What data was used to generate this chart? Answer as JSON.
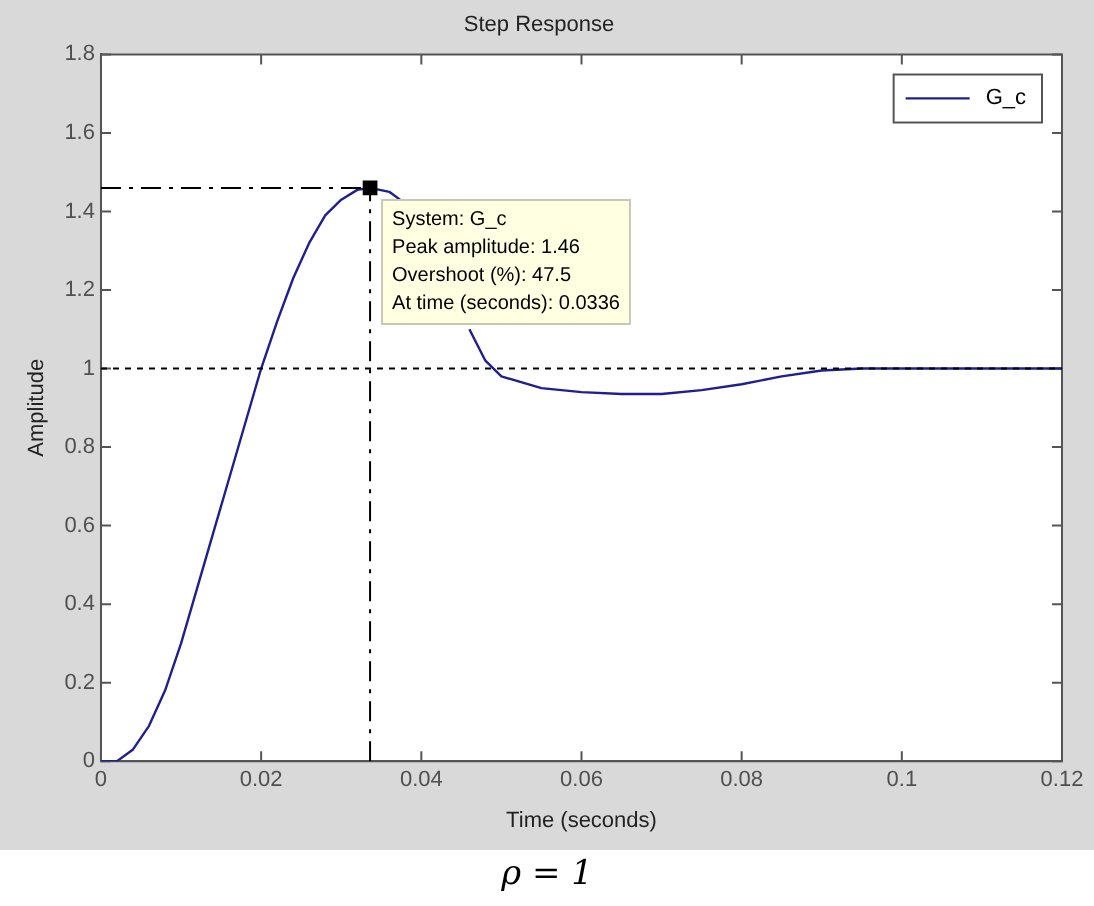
{
  "chart_data": {
    "type": "line",
    "title": "Step Response",
    "xlabel": "Time (seconds)",
    "ylabel": "Amplitude",
    "xlim": [
      0,
      0.12
    ],
    "xticks": [
      0,
      0.02,
      0.04,
      0.06,
      0.08,
      0.1,
      0.12
    ],
    "ylim": [
      0,
      1.8
    ],
    "yticks": [
      0,
      0.2,
      0.4,
      0.6,
      0.8,
      1,
      1.2,
      1.4,
      1.6,
      1.8
    ],
    "legend": "top right",
    "series": [
      {
        "name": "G_c",
        "color": "#1f1f8f",
        "marker": "none",
        "x": [
          0,
          0.002,
          0.004,
          0.006,
          0.008,
          0.01,
          0.012,
          0.014,
          0.016,
          0.018,
          0.02,
          0.022,
          0.024,
          0.026,
          0.028,
          0.03,
          0.032,
          0.0336,
          0.036,
          0.038,
          0.04,
          0.042,
          0.044,
          0.046,
          0.048,
          0.05,
          0.055,
          0.06,
          0.065,
          0.07,
          0.075,
          0.08,
          0.085,
          0.09,
          0.095,
          0.1,
          0.11,
          0.12
        ],
        "values": [
          0,
          0,
          0.03,
          0.09,
          0.18,
          0.3,
          0.44,
          0.58,
          0.72,
          0.86,
          1,
          1.12,
          1.23,
          1.32,
          1.39,
          1.43,
          1.455,
          1.46,
          1.45,
          1.42,
          null,
          null,
          null,
          1.1,
          1.02,
          0.98,
          0.95,
          0.94,
          0.935,
          0.935,
          0.945,
          0.96,
          0.98,
          0.995,
          1,
          1,
          1,
          1
        ]
      },
      {
        "type": "scatter",
        "color": "#000000",
        "marker": "square",
        "x": [
          0.0336
        ],
        "values": [
          1.46
        ]
      }
    ],
    "ref_lines": [
      {
        "axis": "y",
        "value": 1,
        "color": "#000000",
        "line_style": "dotted"
      },
      {
        "axis": "x",
        "value": 0.0336,
        "color": "#000000",
        "line_style": "dashdot"
      },
      {
        "axis": "y",
        "value": 1.46,
        "color": "#000000",
        "line_style": "dashdot"
      }
    ],
    "annotations": [
      {
        "text": "System: G_c\nPeak amplitude: 1.46\nOvershoot (%): 47.5\nAt time (seconds): 0.0336",
        "x": 0.0336,
        "y": 1.46
      },
      "ρ = 1"
    ]
  }
}
